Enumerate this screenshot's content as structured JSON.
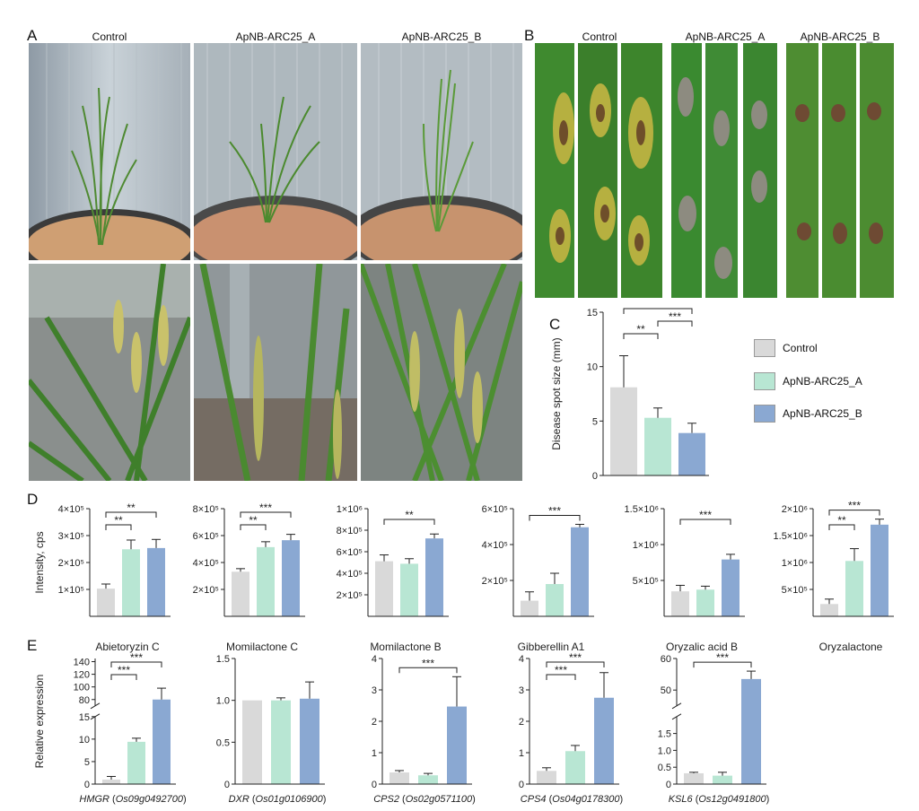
{
  "panel_letters": {
    "a": "A",
    "b": "B",
    "c": "C",
    "d": "D",
    "e": "E"
  },
  "panel_a": {
    "columns": [
      "Control",
      "ApNB-ARC25_A",
      "ApNB-ARC25_B"
    ]
  },
  "panel_b": {
    "columns": [
      "Control",
      "ApNB-ARC25_A",
      "ApNB-ARC25_B"
    ]
  },
  "colors": {
    "control": "#d9d9d9",
    "a": "#b8e6d3",
    "b": "#8aa8d2",
    "ink": "#222222"
  },
  "legend": [
    "Control",
    "ApNB-ARC25_A",
    "ApNB-ARC25_B"
  ],
  "sig": {
    "two": "**",
    "three": "***"
  },
  "chart_data": [
    {
      "id": "C",
      "type": "bar",
      "ylabel": "Disease spot size (mm)",
      "categories": [
        "Control",
        "ApNB-ARC25_A",
        "ApNB-ARC25_B"
      ],
      "values": [
        8.1,
        5.3,
        3.9
      ],
      "errors": [
        2.9,
        0.9,
        0.9
      ],
      "ylim": [
        0,
        15
      ],
      "yticks": [
        "0",
        "5",
        "10",
        "15"
      ],
      "significance": [
        {
          "from": 0,
          "to": 1,
          "label": "**"
        },
        {
          "from": 1,
          "to": 2,
          "label": "***"
        },
        {
          "from": 0,
          "to": 2,
          "label": "***"
        }
      ]
    },
    {
      "id": "D1",
      "type": "bar",
      "title": "Abietoryzin C",
      "ylabel": "Intensity, cps",
      "categories": [
        "Control",
        "ApNB-ARC25_A",
        "ApNB-ARC25_B"
      ],
      "values": [
        140000,
        268000,
        272000
      ],
      "errors": [
        15000,
        30000,
        28000
      ],
      "ylim": [
        50000,
        400000
      ],
      "yticks": [
        "1×10⁵",
        "2×10⁵",
        "3×10⁵",
        "4×10⁵"
      ],
      "significance": [
        {
          "from": 0,
          "to": 1,
          "label": "**"
        },
        {
          "from": 0,
          "to": 2,
          "label": "**"
        }
      ]
    },
    {
      "id": "D2",
      "type": "bar",
      "title": "Momilactone C",
      "categories": [
        "Control",
        "ApNB-ARC25_A",
        "ApNB-ARC25_B"
      ],
      "values": [
        390000,
        550000,
        595000
      ],
      "errors": [
        20000,
        35000,
        38000
      ],
      "ylim": [
        100000,
        800000
      ],
      "yticks": [
        "2×10⁵",
        "4×10⁵",
        "6×10⁵",
        "8×10⁵"
      ],
      "significance": [
        {
          "from": 0,
          "to": 1,
          "label": "**"
        },
        {
          "from": 0,
          "to": 2,
          "label": "***"
        }
      ]
    },
    {
      "id": "D3",
      "type": "bar",
      "title": "Momilactone B",
      "categories": [
        "Control",
        "ApNB-ARC25_A",
        "ApNB-ARC25_B"
      ],
      "values": [
        585000,
        565000,
        765000
      ],
      "errors": [
        50000,
        40000,
        35000
      ],
      "ylim": [
        150000,
        1000000
      ],
      "yticks": [
        "2×10⁵",
        "4×10⁵",
        "6×10⁵",
        "8×10⁵",
        "1×10⁶"
      ],
      "significance": [
        {
          "from": 0,
          "to": 2,
          "label": "**"
        }
      ]
    },
    {
      "id": "D4",
      "type": "bar",
      "title": "Gibberellin A1",
      "categories": [
        "Control",
        "ApNB-ARC25_A",
        "ApNB-ARC25_B"
      ],
      "values": [
        130000,
        215000,
        505000
      ],
      "errors": [
        45000,
        55000,
        15000
      ],
      "ylim": [
        50000,
        600000
      ],
      "yticks": [
        "2×10⁵",
        "4×10⁵",
        "6×10⁵"
      ],
      "significance": [
        {
          "from": 0,
          "to": 2,
          "label": "***"
        }
      ]
    },
    {
      "id": "D5",
      "type": "bar",
      "title": "Oryzalic acid B",
      "categories": [
        "Control",
        "ApNB-ARC25_A",
        "ApNB-ARC25_B"
      ],
      "values": [
        540000,
        560000,
        910000
      ],
      "errors": [
        70000,
        40000,
        60000
      ],
      "ylim": [
        250000,
        1500000
      ],
      "yticks": [
        "5×10⁵",
        "1×10⁶",
        "1.5×10⁶"
      ],
      "significance": [
        {
          "from": 0,
          "to": 2,
          "label": "***"
        }
      ]
    },
    {
      "id": "D6",
      "type": "bar",
      "title": "Oryzalactone",
      "categories": [
        "Control",
        "ApNB-ARC25_A",
        "ApNB-ARC25_B"
      ],
      "values": [
        450000,
        1150000,
        1740000
      ],
      "errors": [
        80000,
        200000,
        90000
      ],
      "ylim": [
        250000,
        2000000
      ],
      "yticks": [
        "5×10⁵",
        "1×10⁶",
        "1.5×10⁶",
        "2×10⁶"
      ],
      "significance": [
        {
          "from": 0,
          "to": 1,
          "label": "**"
        },
        {
          "from": 0,
          "to": 2,
          "label": "***"
        }
      ]
    },
    {
      "id": "E1",
      "type": "bar",
      "ylabel": "Relative expression",
      "xlabel": "HMGR",
      "xlabel_sub": " (Os09g0492700)",
      "categories": [
        "Control",
        "ApNB-ARC25_A",
        "ApNB-ARC25_B"
      ],
      "values": [
        1.0,
        9.4,
        80
      ],
      "errors": [
        0.7,
        0.8,
        18
      ],
      "broken": true,
      "lower": {
        "ylim": [
          0,
          15
        ],
        "ticks": [
          "0",
          "5",
          "10",
          "15"
        ]
      },
      "upper": {
        "ylim": [
          70,
          145
        ],
        "ticks": [
          "80",
          "100",
          "120",
          "140"
        ]
      },
      "significance": [
        {
          "from": 0,
          "to": 1,
          "label": "***"
        },
        {
          "from": 0,
          "to": 2,
          "label": "***"
        }
      ]
    },
    {
      "id": "E2",
      "type": "bar",
      "xlabel": "DXR",
      "xlabel_sub": " (Os01g0106900)",
      "categories": [
        "Control",
        "ApNB-ARC25_A",
        "ApNB-ARC25_B"
      ],
      "values": [
        1.0,
        1.0,
        1.02
      ],
      "errors": [
        0,
        0.03,
        0.2
      ],
      "ylim": [
        0,
        1.5
      ],
      "yticks": [
        "0",
        "0.5",
        "1.0",
        "1.5"
      ],
      "significance": []
    },
    {
      "id": "E3",
      "type": "bar",
      "xlabel": "CPS2",
      "xlabel_sub": " (Os02g0571100)",
      "categories": [
        "Control",
        "ApNB-ARC25_A",
        "ApNB-ARC25_B"
      ],
      "values": [
        0.37,
        0.28,
        2.47
      ],
      "errors": [
        0.06,
        0.06,
        0.95
      ],
      "ylim": [
        0,
        4
      ],
      "yticks": [
        "0",
        "1",
        "2",
        "3",
        "4"
      ],
      "significance": [
        {
          "from": 0,
          "to": 2,
          "label": "***"
        }
      ]
    },
    {
      "id": "E4",
      "type": "bar",
      "xlabel": "CPS4",
      "xlabel_sub": " (Os04g0178300)",
      "categories": [
        "Control",
        "ApNB-ARC25_A",
        "ApNB-ARC25_B"
      ],
      "values": [
        0.42,
        1.05,
        2.75
      ],
      "errors": [
        0.1,
        0.18,
        0.8
      ],
      "ylim": [
        0,
        4
      ],
      "yticks": [
        "0",
        "1",
        "2",
        "3",
        "4"
      ],
      "significance": [
        {
          "from": 0,
          "to": 1,
          "label": "***"
        },
        {
          "from": 0,
          "to": 2,
          "label": "***"
        }
      ]
    },
    {
      "id": "E5",
      "type": "bar",
      "xlabel": "KSL6",
      "xlabel_sub": " (Os12g0491800)",
      "categories": [
        "Control",
        "ApNB-ARC25_A",
        "ApNB-ARC25_B"
      ],
      "values": [
        0.32,
        0.25,
        53.5
      ],
      "errors": [
        0.03,
        0.1,
        2.5
      ],
      "broken": true,
      "lower": {
        "ylim": [
          0,
          2.0
        ],
        "ticks": [
          "0",
          "0.5",
          "1.0",
          "1.5"
        ]
      },
      "upper": {
        "ylim": [
          45,
          60
        ],
        "ticks": [
          "50",
          "60"
        ]
      },
      "significance": [
        {
          "from": 0,
          "to": 2,
          "label": "***"
        }
      ]
    }
  ]
}
